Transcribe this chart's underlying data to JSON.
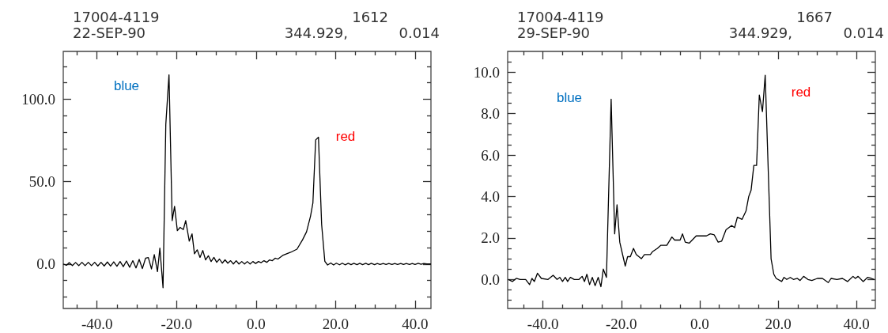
{
  "chart_data": [
    {
      "type": "line",
      "annotations": [
        "17004-4119",
        "1612",
        "22-SEP-90",
        "344.929,",
        "0.014",
        "blue",
        "red"
      ],
      "xlim": [
        -48.5,
        44
      ],
      "ylim": [
        -27,
        129
      ],
      "xticks": [
        {
          "value": -45,
          "label": null
        },
        {
          "value": -40,
          "label": "-40.0"
        },
        {
          "value": -35,
          "label": null
        },
        {
          "value": -30,
          "label": null
        },
        {
          "value": -25,
          "label": null
        },
        {
          "value": -20,
          "label": "-20.0"
        },
        {
          "value": -15,
          "label": null
        },
        {
          "value": -10,
          "label": null
        },
        {
          "value": -5,
          "label": null
        },
        {
          "value": 0,
          "label": "0.0"
        },
        {
          "value": 5,
          "label": null
        },
        {
          "value": 10,
          "label": null
        },
        {
          "value": 15,
          "label": null
        },
        {
          "value": 20,
          "label": "20.0"
        },
        {
          "value": 25,
          "label": null
        },
        {
          "value": 30,
          "label": null
        },
        {
          "value": 35,
          "label": null
        },
        {
          "value": 40,
          "label": "40.0"
        }
      ],
      "yticks": [
        {
          "value": -20,
          "label": null
        },
        {
          "value": -10,
          "label": null
        },
        {
          "value": 0,
          "label": "0.0"
        },
        {
          "value": 10,
          "label": null
        },
        {
          "value": 20,
          "label": null
        },
        {
          "value": 30,
          "label": null
        },
        {
          "value": 40,
          "label": null
        },
        {
          "value": 50,
          "label": "50.0"
        },
        {
          "value": 60,
          "label": null
        },
        {
          "value": 70,
          "label": null
        },
        {
          "value": 80,
          "label": null
        },
        {
          "value": 90,
          "label": null
        },
        {
          "value": 100,
          "label": "100.0"
        },
        {
          "value": 110,
          "label": null
        },
        {
          "value": 120,
          "label": null
        }
      ],
      "grid": false,
      "marker": "none",
      "series": [
        {
          "color": "#000000",
          "x": [
            -48.5,
            -47.7,
            -47,
            -46.2,
            -45.4,
            -44.6,
            -43.8,
            -43,
            -42.2,
            -41.4,
            -40.6,
            -39.8,
            -39,
            -38.2,
            -37.4,
            -36.6,
            -35.8,
            -35,
            -34.2,
            -33.4,
            -32.6,
            -31.8,
            -31,
            -30.2,
            -29.4,
            -28.6,
            -27.8,
            -27.1,
            -26.3,
            -25.6,
            -24.8,
            -24.2,
            -23.4,
            -22.7,
            -21.9,
            -21.1,
            -20.5,
            -19.8,
            -19.1,
            -18.3,
            -17.7,
            -16.8,
            -16.1,
            -15.5,
            -14.8,
            -14.1,
            -13.4,
            -12.7,
            -12,
            -11.3,
            -10.6,
            -9.9,
            -9.2,
            -8.5,
            -7.8,
            -7.1,
            -6.4,
            -5.7,
            -5,
            -4.3,
            -3.6,
            -2.9,
            -2.2,
            -1.5,
            -0.8,
            -0.1,
            0.6,
            1.3,
            2,
            2.7,
            3.4,
            4.1,
            4.8,
            5.5,
            6.7,
            8.7,
            10.3,
            11.7,
            12.7,
            13.7,
            14.3,
            15,
            15.7,
            16.5,
            17.3,
            18,
            18.8,
            19.5,
            20.2,
            21,
            21.7,
            22.4,
            23.2,
            23.9,
            24.6,
            25.4,
            26.1,
            26.8,
            27.6,
            28.3,
            29,
            29.8,
            30.5,
            31.2,
            32,
            32.7,
            33.4,
            34.2,
            34.9,
            35.6,
            36.4,
            37.1,
            37.8,
            38.6,
            39.3,
            40,
            40.8,
            41.5,
            42.2,
            43,
            44
          ],
          "values": [
            0,
            -0.8,
            0.8,
            -1,
            0.9,
            -1,
            1,
            -1,
            1,
            -1,
            1,
            -1.2,
            1,
            -1.2,
            1.2,
            -1.3,
            1.3,
            -1.4,
            1.5,
            -1.6,
            1.8,
            -2,
            2,
            -2.4,
            2.8,
            -2.8,
            3.5,
            3.9,
            -3,
            5.7,
            -4.6,
            9.6,
            -14.4,
            84.8,
            114.8,
            26.3,
            35,
            20.2,
            22.2,
            20.9,
            26.3,
            13.9,
            18.3,
            6.2,
            8.6,
            4,
            8.2,
            2.5,
            5,
            1.5,
            4,
            1,
            3,
            0.5,
            2.5,
            0.5,
            2,
            0,
            2,
            0,
            1.5,
            0,
            1.5,
            0,
            1.5,
            0.3,
            1.5,
            0.8,
            2,
            1,
            2.5,
            2,
            3.5,
            3,
            5.2,
            7.1,
            9,
            14.7,
            19.5,
            29,
            37,
            75.3,
            76.9,
            24,
            1.6,
            -0.6,
            0.6,
            -0.6,
            0.5,
            -0.5,
            0.5,
            -0.5,
            0.4,
            -0.4,
            0.4,
            -0.4,
            0.4,
            -0.4,
            0.4,
            -0.4,
            0.4,
            -0.4,
            0.3,
            -0.3,
            0.3,
            -0.3,
            0.3,
            -0.3,
            0.3,
            -0.3,
            0.3,
            -0.3,
            0.3,
            -0.3,
            0.3,
            -0.3,
            0.4,
            -0.2,
            0.3,
            0,
            0
          ]
        }
      ]
    },
    {
      "type": "line",
      "annotations": [
        "17004-4119",
        "1667",
        "29-SEP-90",
        "344.929,",
        "0.014",
        "blue",
        "red"
      ],
      "xlim": [
        -49,
        44.8
      ],
      "ylim": [
        -1.4,
        11
      ],
      "xticks": [
        {
          "value": -45,
          "label": null
        },
        {
          "value": -40,
          "label": "-40.0"
        },
        {
          "value": -35,
          "label": null
        },
        {
          "value": -30,
          "label": null
        },
        {
          "value": -25,
          "label": null
        },
        {
          "value": -20,
          "label": "-20.0"
        },
        {
          "value": -15,
          "label": null
        },
        {
          "value": -10,
          "label": null
        },
        {
          "value": -5,
          "label": null
        },
        {
          "value": 0,
          "label": "0.0"
        },
        {
          "value": 5,
          "label": null
        },
        {
          "value": 10,
          "label": null
        },
        {
          "value": 15,
          "label": null
        },
        {
          "value": 20,
          "label": "20.0"
        },
        {
          "value": 25,
          "label": null
        },
        {
          "value": 30,
          "label": null
        },
        {
          "value": 35,
          "label": null
        },
        {
          "value": 40,
          "label": "40.0"
        }
      ],
      "yticks": [
        {
          "value": -1,
          "label": null
        },
        {
          "value": -0.5,
          "label": null
        },
        {
          "value": 0,
          "label": "0.0"
        },
        {
          "value": 0.5,
          "label": null
        },
        {
          "value": 1,
          "label": null
        },
        {
          "value": 1.5,
          "label": null
        },
        {
          "value": 2,
          "label": "2.0"
        },
        {
          "value": 2.5,
          "label": null
        },
        {
          "value": 3,
          "label": null
        },
        {
          "value": 3.5,
          "label": null
        },
        {
          "value": 4,
          "label": "4.0"
        },
        {
          "value": 4.5,
          "label": null
        },
        {
          "value": 5,
          "label": null
        },
        {
          "value": 5.5,
          "label": null
        },
        {
          "value": 6,
          "label": "6.0"
        },
        {
          "value": 6.5,
          "label": null
        },
        {
          "value": 7,
          "label": null
        },
        {
          "value": 7.5,
          "label": null
        },
        {
          "value": 8,
          "label": "8.0"
        },
        {
          "value": 8.5,
          "label": null
        },
        {
          "value": 9,
          "label": null
        },
        {
          "value": 9.5,
          "label": null
        },
        {
          "value": 10,
          "label": "10.0"
        },
        {
          "value": 10.5,
          "label": null
        }
      ],
      "grid": false,
      "marker": "none",
      "series": [
        {
          "color": "#000000",
          "x": [
            -48.8,
            -47.8,
            -46.8,
            -45.8,
            -44.4,
            -43.4,
            -42.8,
            -42.2,
            -41.4,
            -40.4,
            -38.7,
            -37.4,
            -36.4,
            -35.7,
            -35,
            -34.3,
            -33.7,
            -33,
            -32,
            -30.8,
            -30,
            -29.4,
            -28.8,
            -28.1,
            -27.4,
            -26.7,
            -25.9,
            -25.2,
            -24.6,
            -23.8,
            -22.6,
            -21.7,
            -21.1,
            -20.4,
            -19.8,
            -19,
            -18.4,
            -17.7,
            -16.9,
            -16.2,
            -14.9,
            -14.1,
            -13.1,
            -12.6,
            -12,
            -10.8,
            -9.9,
            -8.4,
            -7.1,
            -6.4,
            -5,
            -4.4,
            -3.7,
            -2.7,
            -0.9,
            0.4,
            1.7,
            2.7,
            3.7,
            4.7,
            5.6,
            6.7,
            8.1,
            8.9,
            9.6,
            10.8,
            11.8,
            12.5,
            13.1,
            13.8,
            14.5,
            15.2,
            16,
            16.7,
            18.2,
            18.9,
            19.5,
            20.9,
            21.5,
            22.2,
            23.1,
            23.9,
            24.9,
            25.6,
            26.5,
            27.6,
            28.6,
            30,
            31.3,
            32.8,
            33.5,
            35,
            36.4,
            37.7,
            39.1,
            39.7,
            40.4,
            41.7,
            42.8,
            43.8,
            44.5
          ],
          "values": [
            0,
            -0.1,
            0.05,
            0,
            0,
            -0.25,
            0.05,
            -0.1,
            0.3,
            0.05,
            0,
            0.2,
            0,
            0.1,
            -0.1,
            0.1,
            -0.1,
            0.1,
            0,
            0,
            0.15,
            -0.1,
            0.25,
            -0.25,
            0.1,
            -0.3,
            0.1,
            -0.35,
            0.5,
            0.1,
            8.7,
            2.2,
            3.6,
            1.8,
            1.3,
            0.65,
            1.1,
            1.1,
            1.5,
            1.2,
            1,
            1.2,
            1.2,
            1.2,
            1.35,
            1.5,
            1.65,
            1.65,
            2.05,
            1.9,
            1.9,
            2.2,
            1.8,
            1.75,
            2.1,
            2.1,
            2.1,
            2.2,
            2.15,
            1.8,
            1.85,
            2.4,
            2.6,
            2.5,
            3,
            2.9,
            3.3,
            4,
            4.3,
            5.5,
            5.5,
            8.9,
            8.1,
            9.85,
            1,
            0.25,
            0.05,
            -0.1,
            0.1,
            0,
            0.1,
            0,
            0.05,
            -0.05,
            0.15,
            0,
            -0.05,
            0.05,
            0.05,
            -0.15,
            0.05,
            0,
            0.05,
            -0.1,
            0.15,
            0.05,
            0.15,
            -0.1,
            0.1,
            0.05,
            0
          ]
        }
      ]
    }
  ]
}
